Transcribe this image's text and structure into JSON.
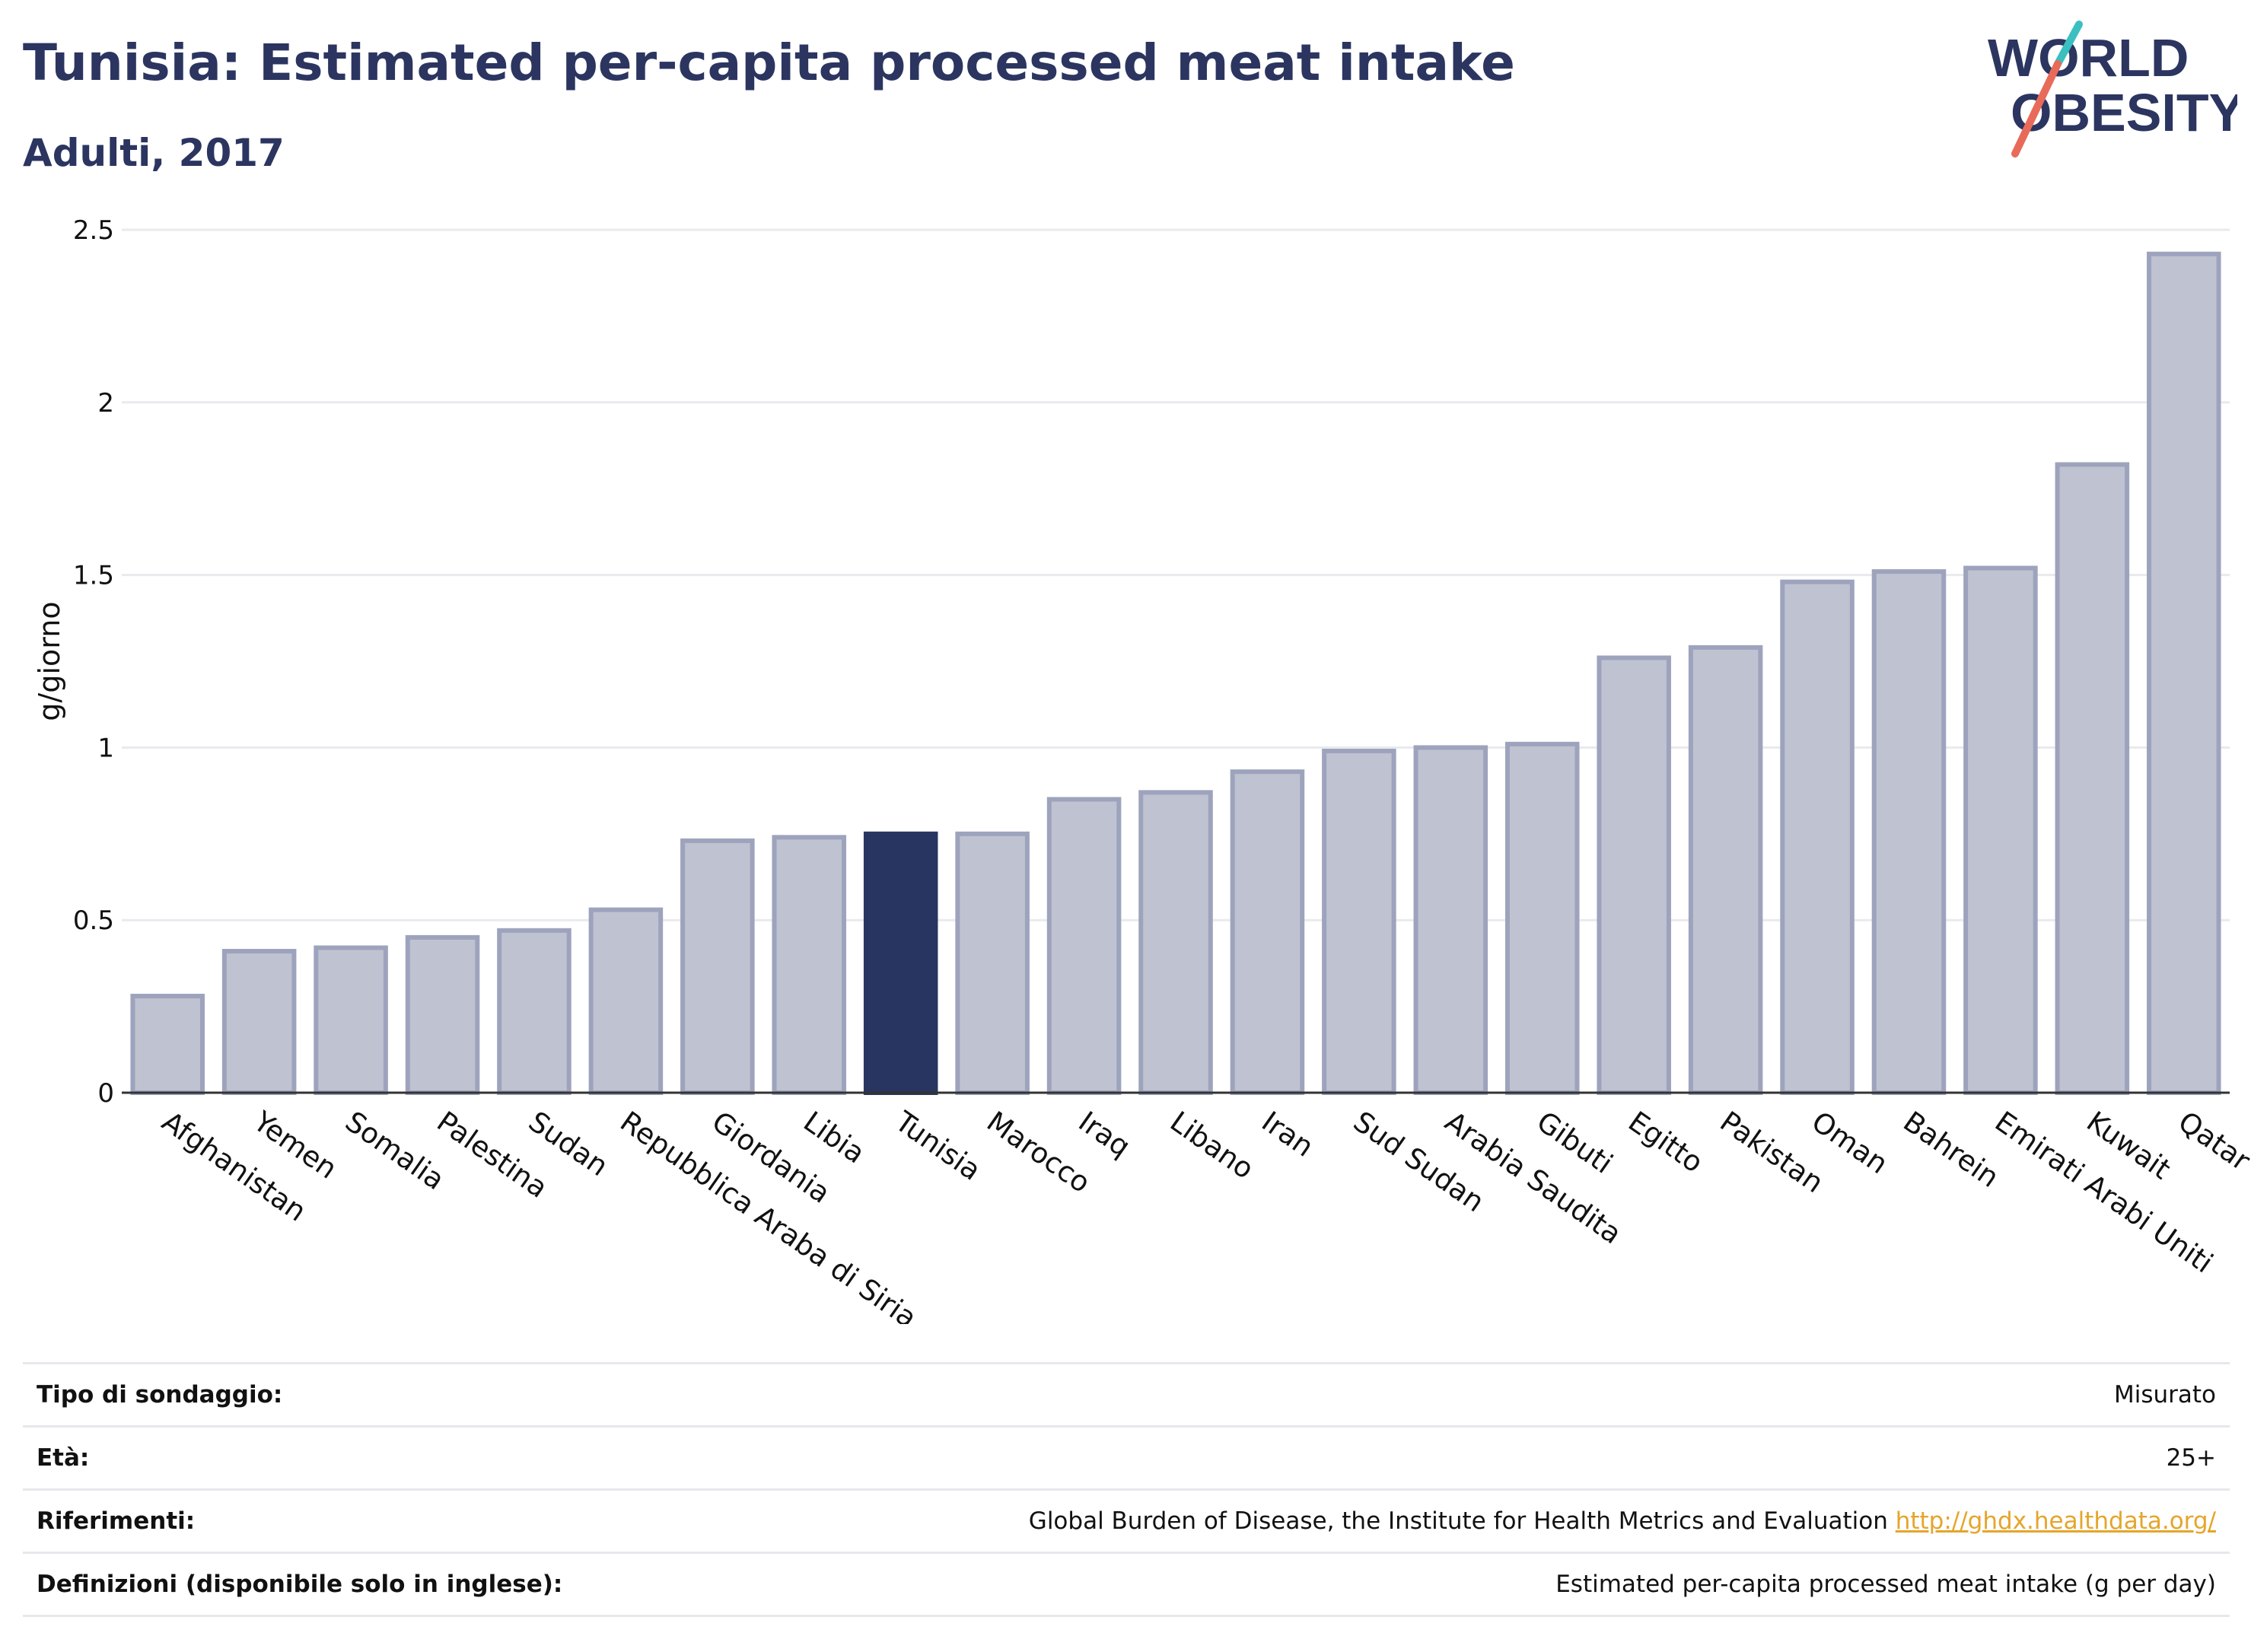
{
  "header": {
    "title": "Tunisia: Estimated per-capita processed meat intake",
    "subtitle": "Adulti, 2017"
  },
  "logo": {
    "line1": "WORLD",
    "line2": "OBESITY",
    "colors": {
      "text": "#2b3560",
      "slash_teal": "#3bbfc0",
      "slash_coral": "#e86b5a"
    }
  },
  "colors": {
    "bar_default": "#bfc2d0",
    "bar_border": "#9ea3bd",
    "bar_highlight": "#283560",
    "grid": "#e9eaee",
    "axis": "#333333"
  },
  "chart_data": {
    "type": "bar",
    "ylabel": "g/giorno",
    "ylim": [
      0,
      2.5
    ],
    "yticks": [
      0,
      0.5,
      1,
      1.5,
      2,
      2.5
    ],
    "ytick_labels": [
      "0",
      "0.5",
      "1",
      "1.5",
      "2",
      "2.5"
    ],
    "grid": true,
    "highlight": "Tunisia",
    "categories": [
      "Afghanistan",
      "Yemen",
      "Somalia",
      "Palestina",
      "Sudan",
      "Repubblica Araba di Siria",
      "Giordania",
      "Libia",
      "Tunisia",
      "Marocco",
      "Iraq",
      "Libano",
      "Iran",
      "Sud Sudan",
      "Arabia Saudita",
      "Gibuti",
      "Egitto",
      "Pakistan",
      "Oman",
      "Bahrein",
      "Emirati Arabi Uniti",
      "Kuwait",
      "Qatar"
    ],
    "values": [
      0.28,
      0.41,
      0.42,
      0.45,
      0.47,
      0.53,
      0.73,
      0.74,
      0.75,
      0.75,
      0.85,
      0.87,
      0.93,
      0.99,
      1.0,
      1.01,
      1.26,
      1.29,
      1.48,
      1.51,
      1.52,
      1.82,
      2.43
    ]
  },
  "info": {
    "rows": [
      {
        "label": "Tipo di sondaggio:",
        "value": "Misurato"
      },
      {
        "label": "Età:",
        "value": "25+"
      },
      {
        "label": "Riferimenti:",
        "value": "Global Burden of Disease, the Institute for Health Metrics and Evaluation",
        "link": "http://ghdx.healthdata.org/"
      },
      {
        "label": "Definizioni (disponibile solo in inglese):",
        "value": "Estimated per-capita processed meat intake (g per day)"
      }
    ]
  }
}
